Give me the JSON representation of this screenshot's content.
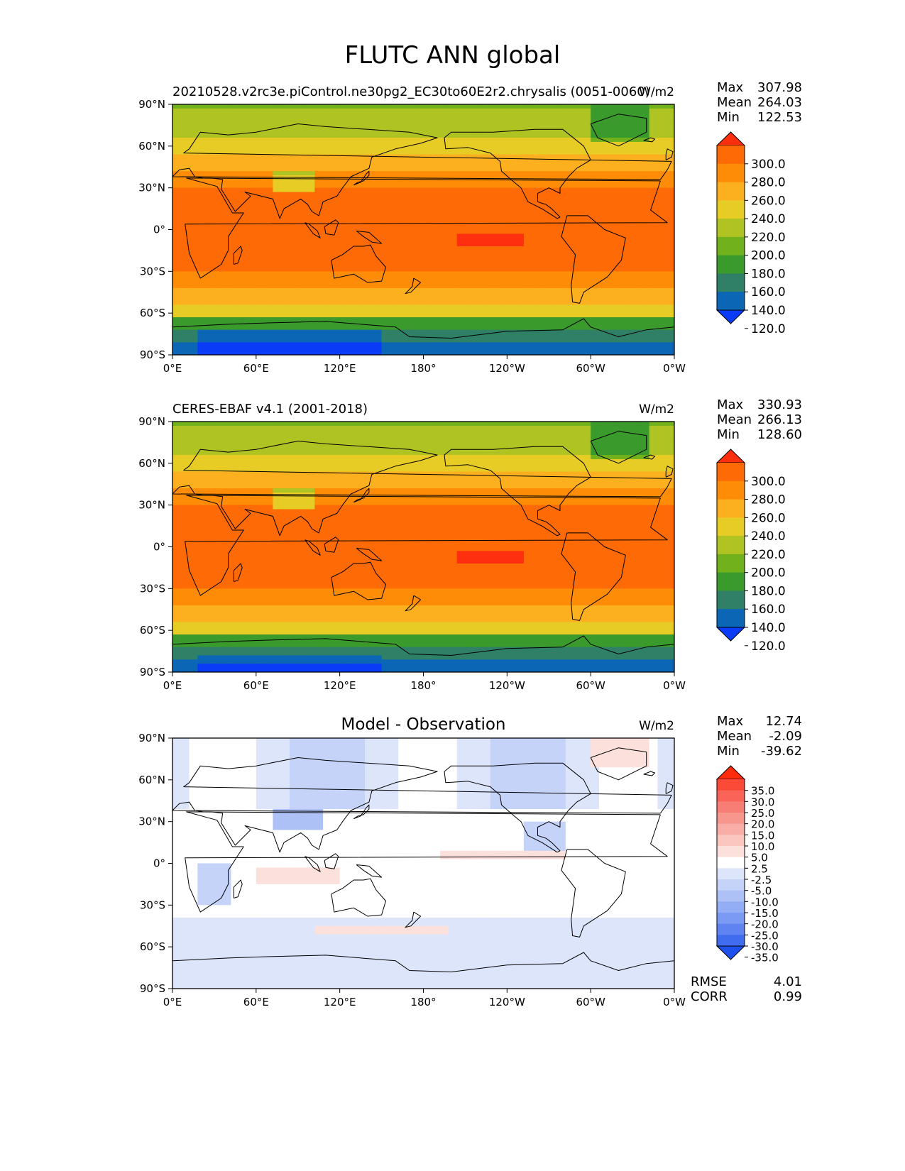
{
  "figure_title": "FLUTC ANN global",
  "chart_data": [
    {
      "type": "heatmap",
      "name": "model",
      "title_left": "20210528.v2rc3e.piControl.ne30pg2_EC30to60E2r2.chrysalis (0051-0060)",
      "title_center": "",
      "units": "W/m2",
      "stats": {
        "Max": "307.98",
        "Mean": "264.03",
        "Min": "122.53"
      },
      "xlim": [
        0,
        360
      ],
      "ylim": [
        -90,
        90
      ],
      "x_ticks": [
        "0°E",
        "60°E",
        "120°E",
        "180°",
        "120°W",
        "60°W",
        "0°W"
      ],
      "y_ticks": [
        "90°N",
        "60°N",
        "30°N",
        "0°",
        "30°S",
        "60°S",
        "90°S"
      ],
      "colorbar": {
        "labels": [
          "300.0",
          "280.0",
          "260.0",
          "240.0",
          "220.0",
          "200.0",
          "180.0",
          "160.0",
          "140.0",
          "120.0"
        ],
        "colors": [
          "#fe2f0f",
          "#fe6a06",
          "#fe8c06",
          "#fdb01f",
          "#e8cc26",
          "#afc323",
          "#70b11c",
          "#3a9a2c",
          "#2f8066",
          "#0b66b6",
          "#0a3cf8"
        ]
      }
    },
    {
      "type": "heatmap",
      "name": "observation",
      "title_left": "CERES-EBAF v4.1 (2001-2018)",
      "title_center": "",
      "units": "W/m2",
      "stats": {
        "Max": "330.93",
        "Mean": "266.13",
        "Min": "128.60"
      },
      "xlim": [
        0,
        360
      ],
      "ylim": [
        -90,
        90
      ],
      "x_ticks": [
        "0°E",
        "60°E",
        "120°E",
        "180°",
        "120°W",
        "60°W",
        "0°W"
      ],
      "y_ticks": [
        "90°N",
        "60°N",
        "30°N",
        "0°",
        "30°S",
        "60°S",
        "90°S"
      ],
      "colorbar": {
        "labels": [
          "300.0",
          "280.0",
          "260.0",
          "240.0",
          "220.0",
          "200.0",
          "180.0",
          "160.0",
          "140.0",
          "120.0"
        ],
        "colors": [
          "#fe2f0f",
          "#fe6a06",
          "#fe8c06",
          "#fdb01f",
          "#e8cc26",
          "#afc323",
          "#70b11c",
          "#3a9a2c",
          "#2f8066",
          "#0b66b6",
          "#0a3cf8"
        ]
      }
    },
    {
      "type": "heatmap",
      "name": "difference",
      "title_left": "",
      "title_center": "Model - Observation",
      "units": "W/m2",
      "stats": {
        "Max": "12.74",
        "Mean": "-2.09",
        "Min": "-39.62"
      },
      "metrics": {
        "RMSE": "4.01",
        "CORR": "0.99"
      },
      "xlim": [
        0,
        360
      ],
      "ylim": [
        -90,
        90
      ],
      "x_ticks": [
        "0°E",
        "60°E",
        "120°E",
        "180°",
        "120°W",
        "60°W",
        "0°W"
      ],
      "y_ticks": [
        "90°N",
        "60°N",
        "30°N",
        "0°",
        "30°S",
        "60°S",
        "90°S"
      ],
      "colorbar": {
        "labels": [
          "35.0",
          "30.0",
          "25.0",
          "20.0",
          "15.0",
          "10.0",
          "5.0",
          "2.5",
          "-2.5",
          "-5.0",
          "-10.0",
          "-15.0",
          "-20.0",
          "-25.0",
          "-30.0",
          "-35.0"
        ],
        "colors": [
          "#fe2b0c",
          "#fc4a38",
          "#fa6458",
          "#f77e74",
          "#f6968d",
          "#f8aea6",
          "#fac6bf",
          "#fce0dc",
          "#ffffff",
          "#dde5fb",
          "#c5d3f9",
          "#adc1f7",
          "#93aef5",
          "#7a9af3",
          "#5f84f1",
          "#406cef",
          "#1e50ec"
        ]
      }
    }
  ]
}
